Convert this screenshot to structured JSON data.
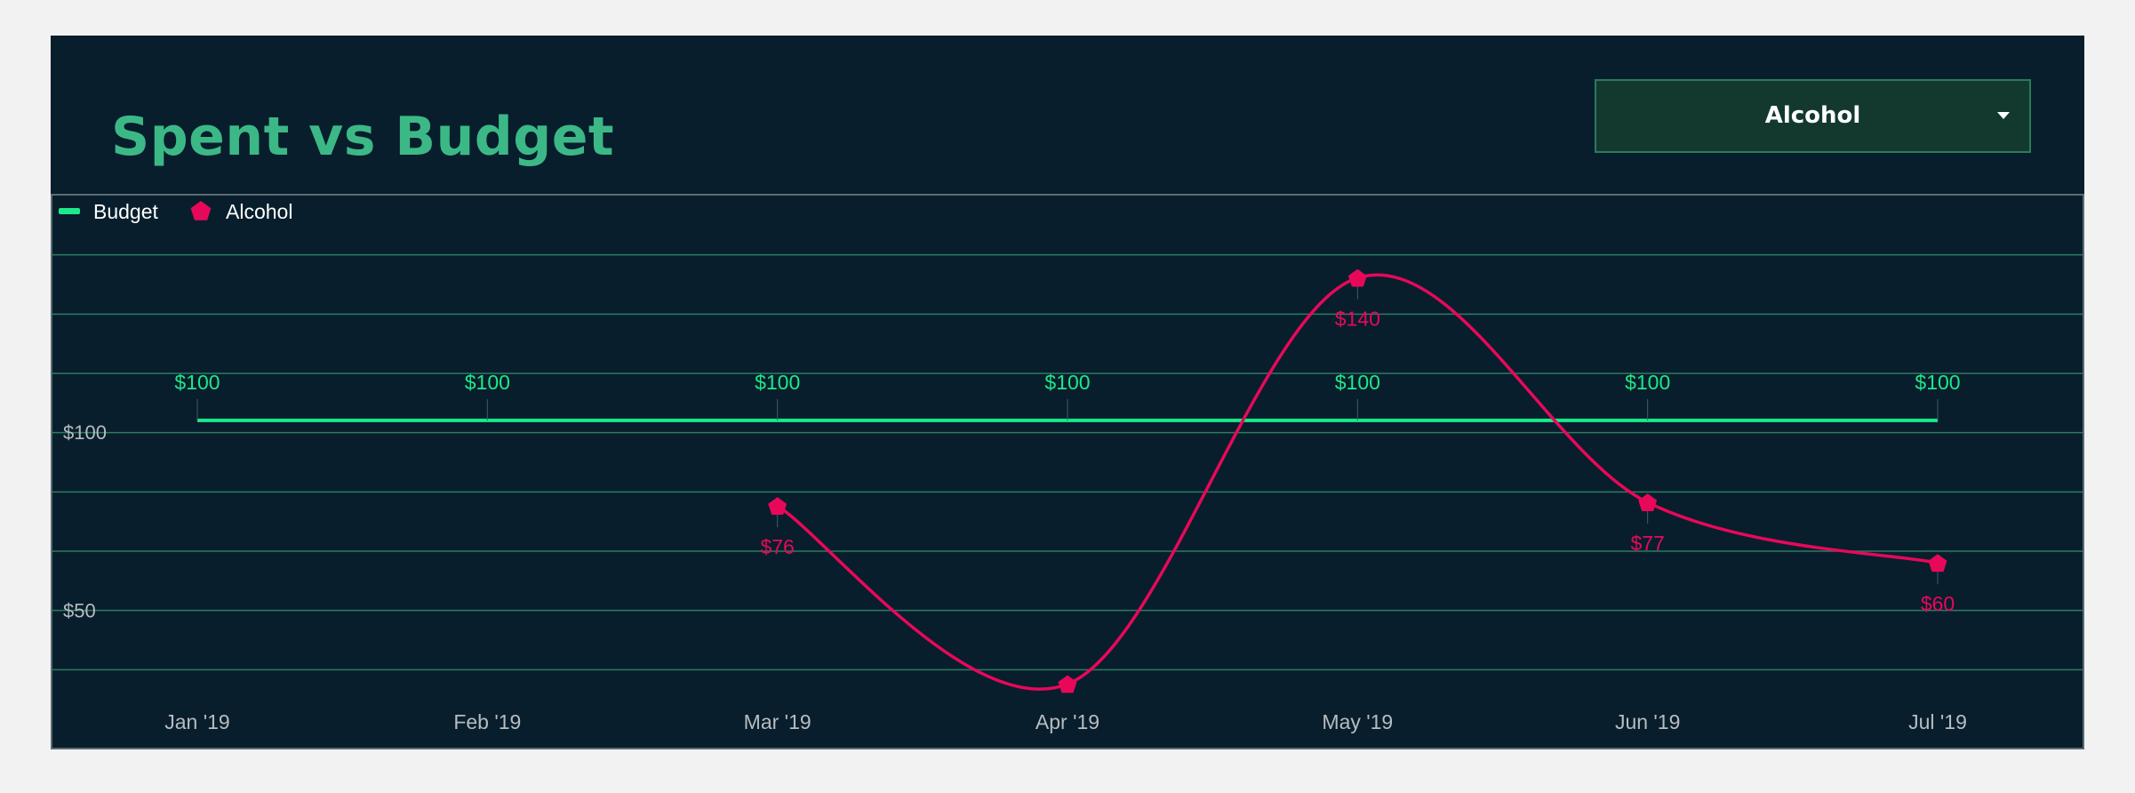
{
  "header": {
    "title": "Spent vs Budget",
    "dropdown_value": "Alcohol"
  },
  "chart_data": {
    "type": "line",
    "categories": [
      "Jan '19",
      "Feb '19",
      "Mar '19",
      "Apr '19",
      "May '19",
      "Jun '19",
      "Jul '19"
    ],
    "series": [
      {
        "name": "Budget",
        "values": [
          100,
          100,
          100,
          100,
          100,
          100,
          100
        ],
        "labels": [
          "$100",
          "$100",
          "$100",
          "$100",
          "$100",
          "$100",
          "$100"
        ],
        "color": "#1de88a",
        "marker": "line"
      },
      {
        "name": "Alcohol",
        "values": [
          null,
          null,
          76,
          26,
          140,
          77,
          60
        ],
        "labels": [
          "",
          "",
          "$76",
          "",
          "$140",
          "$77",
          "$60"
        ],
        "color": "#e8085a",
        "marker": "pentagon"
      }
    ],
    "y_tick_labels": [
      {
        "value": 100,
        "label": "$100"
      },
      {
        "value": 50,
        "label": "$50"
      }
    ],
    "ylim": [
      13.4,
      163.1
    ],
    "grid": true,
    "legend": "top-left",
    "colors": {
      "background": "#081e2c",
      "grid": "#2e7b62",
      "axis_text": "#b7bcc0"
    }
  }
}
